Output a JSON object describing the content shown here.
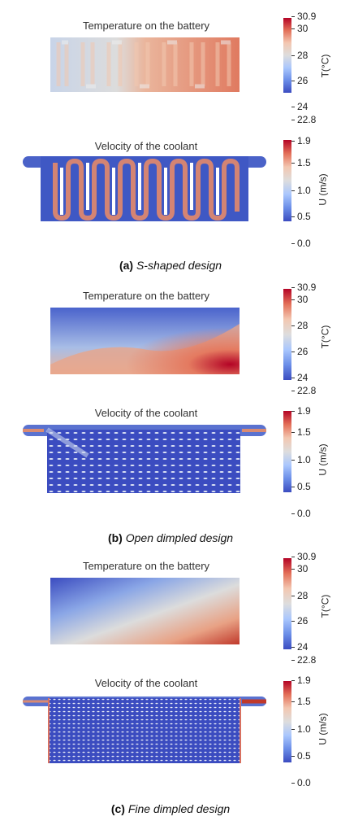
{
  "panels": [
    {
      "id": "a",
      "temp_title": "Temperature on the battery",
      "vel_title": "Velocity of the coolant",
      "caption_tag": "(a)",
      "caption_text": "S-shaped design"
    },
    {
      "id": "b",
      "temp_title": "Temperature on the battery",
      "vel_title": "Velocity of the coolant",
      "caption_tag": "(b)",
      "caption_text": "Open dimpled design"
    },
    {
      "id": "c",
      "temp_title": "Temperature on the battery",
      "vel_title": "Velocity of the coolant",
      "caption_tag": "(c)",
      "caption_text": "Fine dimpled design"
    }
  ],
  "temp_colorbar": {
    "label": "T(°C)",
    "ticks": [
      "30.9",
      "30",
      "28",
      "26",
      "24",
      "22.8"
    ],
    "min": 22.8,
    "max": 30.9
  },
  "vel_colorbar": {
    "label": "U (m/s)",
    "ticks": [
      "1.9",
      "1.5",
      "1.0",
      "0.5",
      "0.0"
    ],
    "min": 0.0,
    "max": 1.9
  },
  "colors": {
    "cold": "#3b4cc0",
    "mid": "#dddddd",
    "hot": "#b40426"
  }
}
